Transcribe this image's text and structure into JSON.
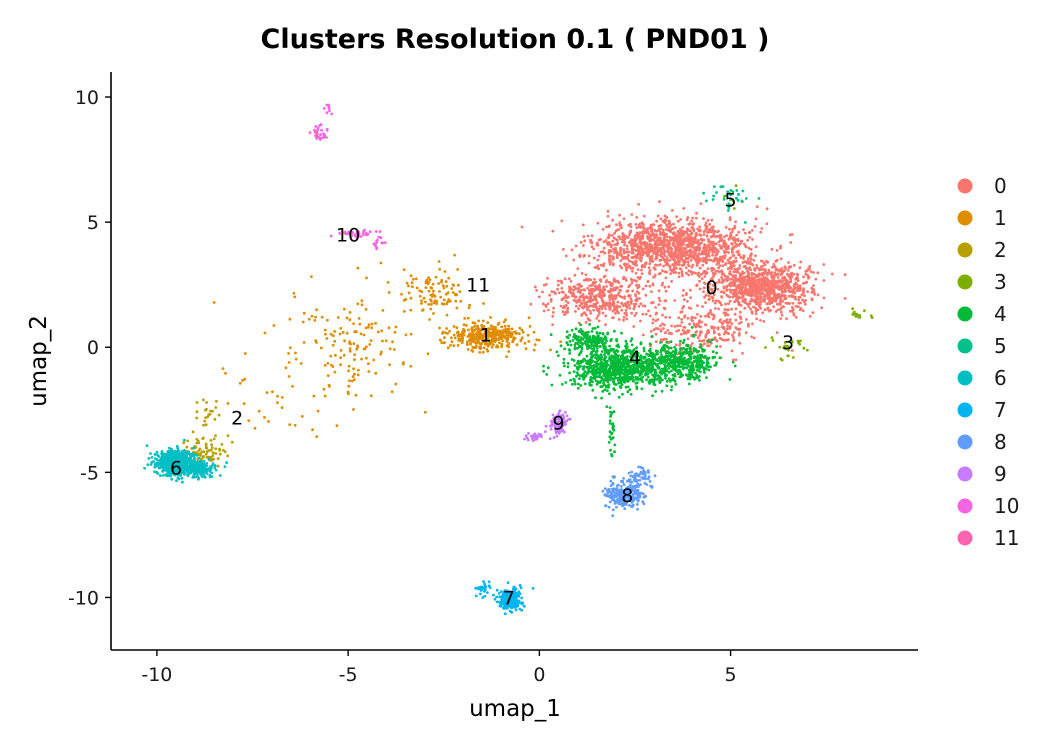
{
  "chart_data": {
    "type": "scatter",
    "title": "Clusters Resolution 0.1 ( PND01 )",
    "xlabel": "umap_1",
    "ylabel": "umap_2",
    "xlim": [
      -11.2,
      9.9
    ],
    "ylim": [
      -12.1,
      11.0
    ],
    "xticks": [
      -10,
      -5,
      0,
      5
    ],
    "yticks": [
      10,
      5,
      0,
      -5,
      -10
    ],
    "grid": false,
    "legend_position": "right",
    "series": [
      {
        "name": "0",
        "color": "#F8766D",
        "blobs": [
          [
            3.5,
            4.0,
            1.8,
            1.0,
            1300
          ],
          [
            5.8,
            2.4,
            1.2,
            0.9,
            900
          ],
          [
            1.6,
            2.0,
            1.4,
            0.8,
            450
          ],
          [
            4.2,
            0.8,
            1.3,
            0.9,
            250
          ]
        ],
        "label_pos": [
          4.5,
          2.4
        ]
      },
      {
        "name": "1",
        "color": "#DE8C00",
        "blobs": [
          [
            -1.4,
            0.4,
            0.9,
            0.5,
            350
          ],
          [
            -2.6,
            2.2,
            0.8,
            0.9,
            90
          ],
          [
            -4.6,
            0.6,
            1.4,
            2.0,
            110
          ],
          [
            -6.4,
            -1.0,
            2.2,
            2.4,
            70
          ]
        ],
        "label_pos": [
          -1.4,
          0.5
        ]
      },
      {
        "name": "2",
        "color": "#B79F00",
        "blobs": [
          [
            -8.8,
            -4.2,
            0.5,
            0.5,
            90
          ],
          [
            -8.7,
            -2.6,
            0.3,
            0.6,
            20
          ]
        ],
        "label_pos": [
          -7.9,
          -2.8
        ]
      },
      {
        "name": "3",
        "color": "#7CAE00",
        "blobs": [
          [
            6.5,
            0.0,
            0.5,
            0.5,
            25
          ],
          [
            8.3,
            1.3,
            0.3,
            0.2,
            15
          ],
          [
            5.0,
            6.0,
            0.4,
            0.4,
            6
          ]
        ],
        "label_pos": [
          6.5,
          0.2
        ]
      },
      {
        "name": "4",
        "color": "#00BA38",
        "blobs": [
          [
            2.0,
            -0.8,
            1.1,
            0.8,
            800
          ],
          [
            3.6,
            -0.6,
            0.9,
            0.7,
            450
          ],
          [
            1.3,
            0.3,
            0.6,
            0.4,
            150
          ],
          [
            1.9,
            -3.3,
            0.08,
            1.0,
            30
          ]
        ],
        "label_pos": [
          2.5,
          -0.4
        ]
      },
      {
        "name": "5",
        "color": "#00C08B",
        "blobs": [
          [
            5.0,
            6.0,
            0.5,
            0.5,
            30
          ]
        ],
        "label_pos": [
          5.0,
          5.9
        ]
      },
      {
        "name": "6",
        "color": "#00BFC4",
        "blobs": [
          [
            -9.5,
            -4.6,
            0.45,
            0.45,
            700
          ],
          [
            -8.9,
            -4.9,
            0.4,
            0.3,
            150
          ]
        ],
        "label_pos": [
          -9.5,
          -4.8
        ]
      },
      {
        "name": "7",
        "color": "#00B4F0",
        "blobs": [
          [
            -0.8,
            -10.1,
            0.3,
            0.4,
            220
          ],
          [
            -1.5,
            -9.6,
            0.2,
            0.3,
            25
          ]
        ],
        "label_pos": [
          -0.8,
          -10.0
        ]
      },
      {
        "name": "8",
        "color": "#619CFF",
        "blobs": [
          [
            2.2,
            -5.9,
            0.45,
            0.45,
            260
          ],
          [
            2.6,
            -5.2,
            0.3,
            0.3,
            50
          ]
        ],
        "label_pos": [
          2.3,
          -5.9
        ]
      },
      {
        "name": "9",
        "color": "#C77CFF",
        "blobs": [
          [
            0.5,
            -3.0,
            0.2,
            0.4,
            90
          ],
          [
            -0.1,
            -3.6,
            0.3,
            0.2,
            25
          ]
        ],
        "label_pos": [
          0.5,
          -3.0
        ]
      },
      {
        "name": "10",
        "color": "#F564E3",
        "blobs": [
          [
            -4.8,
            4.5,
            0.5,
            0.15,
            35
          ],
          [
            -4.2,
            4.1,
            0.2,
            0.2,
            12
          ],
          [
            -5.7,
            8.6,
            0.2,
            0.3,
            25
          ],
          [
            -5.5,
            9.5,
            0.1,
            0.4,
            8
          ]
        ],
        "label_pos": [
          -5.0,
          4.5
        ]
      },
      {
        "name": "11",
        "color": "#FF64B0",
        "blobs": [
          [
            -5.8,
            8.5,
            0.1,
            0.1,
            3
          ]
        ],
        "label_pos": [
          -1.6,
          2.5
        ]
      }
    ]
  }
}
